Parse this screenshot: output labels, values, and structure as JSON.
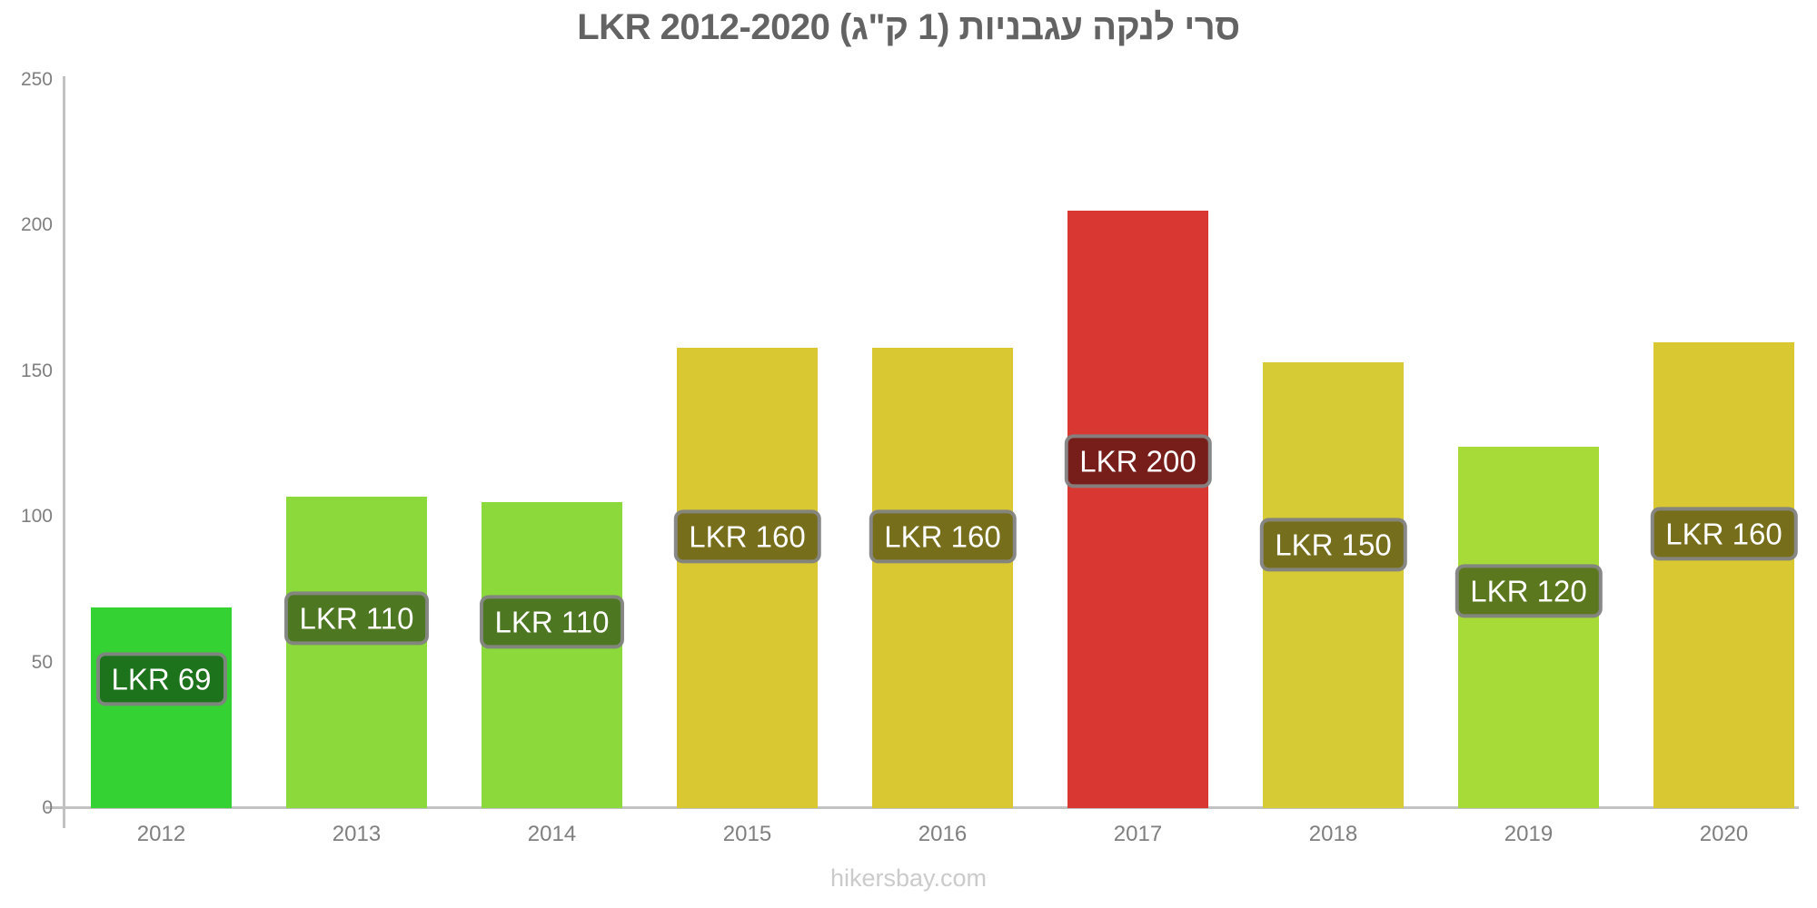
{
  "page": {
    "footer": "hikersbay.com"
  },
  "colors": {
    "title": "#636363",
    "axis": "#c2c2c2",
    "tick_label": "#7f7f7f",
    "bar_label_text": "#ffffff",
    "footer": "#cbcbcb"
  },
  "chart_data": {
    "type": "bar",
    "title": "סרי לנקה עגבניות (1 ק\"ג) LKR 2012-2020",
    "currency": "LKR",
    "categories": [
      "2012",
      "2013",
      "2014",
      "2015",
      "2016",
      "2017",
      "2018",
      "2019",
      "2020"
    ],
    "values": [
      69,
      107,
      105,
      158,
      158,
      205,
      153,
      124,
      160
    ],
    "bar_labels": [
      "LKR 69",
      "LKR 110",
      "LKR 110",
      "LKR 160",
      "LKR 160",
      "LKR 200",
      "LKR 150",
      "LKR 120",
      "LKR 160"
    ],
    "bar_colors": [
      "#35d233",
      "#8cd93c",
      "#8cd93c",
      "#d9c832",
      "#d9c832",
      "#d93732",
      "#d6ca35",
      "#a6db38",
      "#d9c832"
    ],
    "xlabel": "",
    "ylabel": "",
    "ylim": [
      0,
      250
    ],
    "y_ticks": [
      0,
      50,
      100,
      150,
      200,
      250
    ],
    "grid": false,
    "legend": "none",
    "watermark": "hikersbay.com"
  }
}
